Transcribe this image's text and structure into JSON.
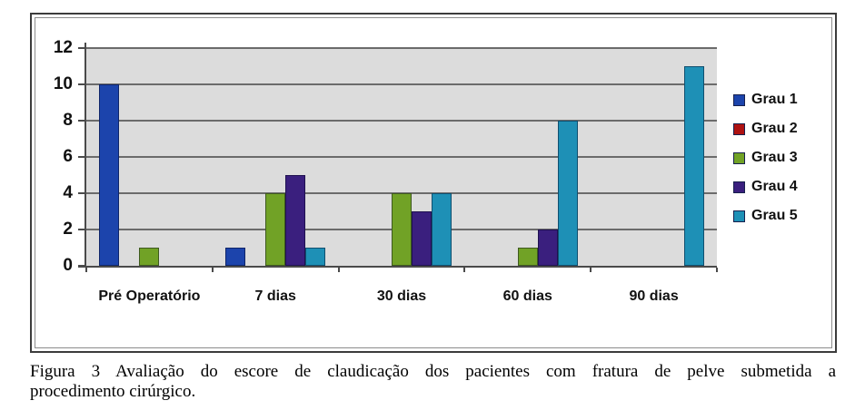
{
  "figure": {
    "caption_line1": "Figura 3 Avaliação do escore de claudicação dos pacientes com fratura de pelve submetida a",
    "caption_line2": "procedimento cirúrgico."
  },
  "chart_data": {
    "type": "bar",
    "title": "",
    "xlabel": "",
    "ylabel": "",
    "categories": [
      "Pré Operatório",
      "7 dias",
      "30 dias",
      "60 dias",
      "90 dias"
    ],
    "series": [
      {
        "name": "Grau 1",
        "color": "#1c44ac",
        "values": [
          10,
          1,
          0,
          0,
          0
        ]
      },
      {
        "name": "Grau 2",
        "color": "#ae1212",
        "values": [
          0,
          0,
          0,
          0,
          0
        ]
      },
      {
        "name": "Grau 3",
        "color": "#71a226",
        "values": [
          1,
          4,
          4,
          1,
          0
        ]
      },
      {
        "name": "Grau 4",
        "color": "#3a1f7e",
        "values": [
          0,
          5,
          3,
          2,
          0
        ]
      },
      {
        "name": "Grau 5",
        "color": "#1e90b6",
        "values": [
          0,
          1,
          4,
          8,
          11
        ]
      }
    ],
    "ylim": [
      0,
      12
    ],
    "yticks": [
      0,
      2,
      4,
      6,
      8,
      10,
      12
    ],
    "grid": true,
    "legend_position": "right",
    "plot_bg_color": "#dcdcdc",
    "grid_color": "#6b6b6b"
  }
}
